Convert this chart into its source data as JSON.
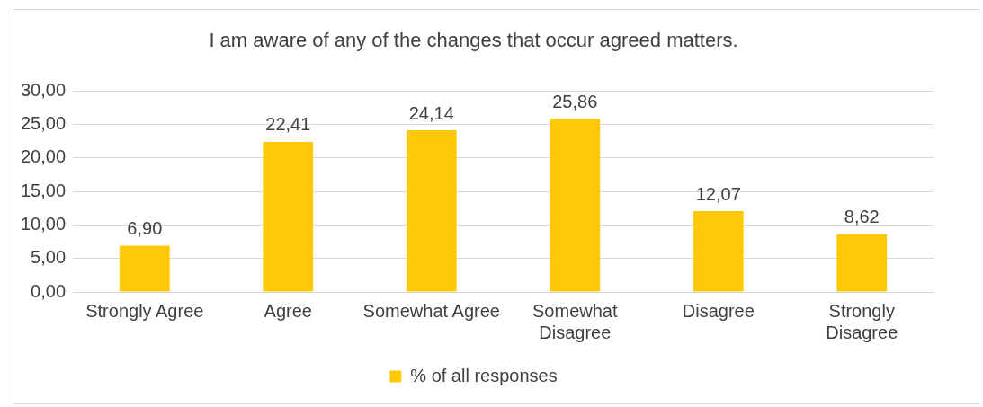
{
  "chart_data": {
    "type": "bar",
    "title": "I am aware of any of the changes that occur agreed matters.",
    "categories": [
      "Strongly Agree",
      "Agree",
      "Somewhat Agree",
      "Somewhat Disagree",
      "Disagree",
      "Strongly Disagree"
    ],
    "series": [
      {
        "name": "% of all responses",
        "color": "#ffc907",
        "values": [
          6.9,
          22.41,
          24.14,
          25.86,
          12.07,
          8.62
        ],
        "value_labels": [
          "6,90",
          "22,41",
          "24,14",
          "25,86",
          "12,07",
          "8,62"
        ]
      }
    ],
    "ylim": [
      0,
      30
    ],
    "yticks": [
      {
        "value": 0,
        "label": "0,00"
      },
      {
        "value": 5,
        "label": "5,00"
      },
      {
        "value": 10,
        "label": "10,00"
      },
      {
        "value": 15,
        "label": "15,00"
      },
      {
        "value": 20,
        "label": "20,00"
      },
      {
        "value": 25,
        "label": "25,00"
      },
      {
        "value": 30,
        "label": "30,00"
      }
    ],
    "grid": "y",
    "legend": "bottom"
  }
}
